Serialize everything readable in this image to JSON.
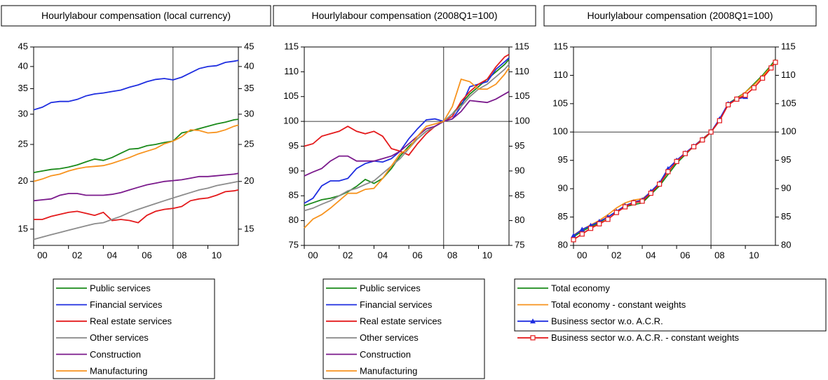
{
  "chart_data": [
    {
      "type": "line",
      "title": "Hourlylabour compensation (local currency)",
      "x": [
        2000,
        2000.5,
        2001,
        2001.5,
        2002,
        2002.5,
        2003,
        2003.5,
        2004,
        2004.5,
        2005,
        2005.5,
        2006,
        2006.5,
        2007,
        2007.5,
        2008,
        2008.5,
        2009,
        2009.5,
        2010,
        2010.5,
        2011,
        2011.5,
        2011.75
      ],
      "xlim": [
        2000,
        2011.75
      ],
      "xticks": [
        {
          "value": 2000,
          "label": "00"
        },
        {
          "value": 2002,
          "label": "02"
        },
        {
          "value": 2004,
          "label": "04"
        },
        {
          "value": 2006,
          "label": "06"
        },
        {
          "value": 2008,
          "label": "08"
        },
        {
          "value": 2010,
          "label": "10"
        }
      ],
      "ylim": [
        13.6,
        45
      ],
      "yticks": [
        15,
        20,
        25,
        30,
        35,
        40,
        45
      ],
      "log_scale": true,
      "vline": 2008,
      "series": [
        {
          "name": "Public services",
          "color": "#1a8a1a",
          "values": [
            21.1,
            21.3,
            21.5,
            21.6,
            21.8,
            22.1,
            22.5,
            22.9,
            22.7,
            23.1,
            23.7,
            24.3,
            24.4,
            24.8,
            25.0,
            25.3,
            25.5,
            26.8,
            27.1,
            27.5,
            27.9,
            28.3,
            28.6,
            29.0,
            29.1
          ]
        },
        {
          "name": "Financial services",
          "color": "#1f2ee0",
          "values": [
            30.8,
            31.3,
            32.2,
            32.4,
            32.4,
            32.8,
            33.5,
            33.9,
            34.1,
            34.4,
            34.7,
            35.3,
            35.8,
            36.5,
            37.0,
            37.2,
            36.9,
            37.5,
            38.5,
            39.5,
            40.0,
            40.2,
            41.0,
            41.3,
            41.5
          ]
        },
        {
          "name": "Real estate services",
          "color": "#e41a1c",
          "values": [
            15.9,
            15.9,
            16.2,
            16.4,
            16.6,
            16.7,
            16.5,
            16.3,
            16.6,
            15.8,
            15.9,
            15.8,
            15.6,
            16.3,
            16.7,
            16.9,
            17.0,
            17.2,
            17.8,
            18.0,
            18.1,
            18.4,
            18.8,
            18.9,
            19.0
          ]
        },
        {
          "name": "Other services",
          "color": "#8c8c8c",
          "values": [
            14.1,
            14.3,
            14.5,
            14.7,
            14.9,
            15.1,
            15.3,
            15.5,
            15.6,
            15.9,
            16.2,
            16.6,
            16.9,
            17.2,
            17.5,
            17.8,
            18.1,
            18.4,
            18.7,
            19.0,
            19.2,
            19.5,
            19.7,
            19.9,
            20.0
          ]
        },
        {
          "name": "Construction",
          "color": "#7b1a8c",
          "values": [
            17.8,
            17.9,
            18.0,
            18.4,
            18.6,
            18.6,
            18.4,
            18.4,
            18.4,
            18.5,
            18.7,
            19.0,
            19.3,
            19.6,
            19.8,
            20.0,
            20.1,
            20.2,
            20.4,
            20.6,
            20.6,
            20.7,
            20.8,
            20.9,
            21.0
          ]
        },
        {
          "name": "Manufacturing",
          "color": "#f7931e",
          "values": [
            20.0,
            20.3,
            20.7,
            20.9,
            21.3,
            21.6,
            21.8,
            21.9,
            22.0,
            22.3,
            22.7,
            23.1,
            23.6,
            24.0,
            24.4,
            25.1,
            25.5,
            26.2,
            27.3,
            27.2,
            26.8,
            26.9,
            27.3,
            27.9,
            28.1
          ]
        }
      ]
    },
    {
      "type": "line",
      "title": "Hourlylabour compensation (2008Q1=100)",
      "x": [
        2000,
        2000.5,
        2001,
        2001.5,
        2002,
        2002.5,
        2003,
        2003.5,
        2004,
        2004.5,
        2005,
        2005.5,
        2006,
        2006.5,
        2007,
        2007.5,
        2008,
        2008.5,
        2009,
        2009.5,
        2010,
        2010.5,
        2011,
        2011.5,
        2011.75
      ],
      "xlim": [
        2000,
        2011.75
      ],
      "xticks": [
        {
          "value": 2000,
          "label": "00"
        },
        {
          "value": 2002,
          "label": "02"
        },
        {
          "value": 2004,
          "label": "04"
        },
        {
          "value": 2006,
          "label": "06"
        },
        {
          "value": 2008,
          "label": "08"
        },
        {
          "value": 2010,
          "label": "10"
        }
      ],
      "ylim": [
        75,
        115
      ],
      "yticks": [
        75,
        80,
        85,
        90,
        95,
        100,
        105,
        110,
        115
      ],
      "log_scale": false,
      "vline": 2008,
      "hline": 100,
      "series": [
        {
          "name": "Public services",
          "color": "#1a8a1a",
          "values": [
            83,
            83.6,
            84.2,
            84.5,
            85,
            85.8,
            86.9,
            88.3,
            87.5,
            88.5,
            90.5,
            93,
            95,
            96.5,
            98,
            99,
            100,
            101.5,
            103.5,
            105.5,
            107,
            108.5,
            110,
            111.5,
            112.5
          ]
        },
        {
          "name": "Financial services",
          "color": "#1f2ee0",
          "values": [
            83.5,
            84.5,
            87,
            88,
            88,
            88.5,
            90.5,
            91.5,
            92,
            91.8,
            92.5,
            94,
            96.5,
            98.5,
            100.3,
            100.5,
            100,
            100.5,
            103,
            107,
            107.5,
            108,
            110.5,
            112,
            112.8
          ]
        },
        {
          "name": "Real estate services",
          "color": "#e41a1c",
          "values": [
            95,
            95.5,
            97,
            97.5,
            98,
            99,
            98,
            97.5,
            98,
            97,
            94.5,
            94,
            93.2,
            95.5,
            97.5,
            99,
            100,
            101,
            104,
            106,
            107.5,
            108.5,
            111,
            113,
            113.5
          ]
        },
        {
          "name": "Other services",
          "color": "#8c8c8c",
          "values": [
            82,
            82.5,
            83.3,
            84,
            85,
            86,
            86.5,
            87.3,
            88,
            89.5,
            91,
            92.5,
            94.5,
            96.5,
            98,
            99,
            100,
            101.5,
            103,
            105,
            106.5,
            107.5,
            109,
            110.5,
            111.5
          ]
        },
        {
          "name": "Construction",
          "color": "#7b1a8c",
          "values": [
            89,
            89.8,
            90.5,
            92,
            93,
            93,
            92,
            92,
            92,
            92.5,
            93,
            94,
            95.5,
            97,
            98.5,
            99,
            100,
            100.5,
            102,
            104.2,
            104,
            103.8,
            104.5,
            105.5,
            106
          ]
        },
        {
          "name": "Manufacturing",
          "color": "#f7931e",
          "values": [
            78.5,
            80.3,
            81.2,
            82.5,
            84,
            85.5,
            85.5,
            86.3,
            86.5,
            88.5,
            91,
            93.5,
            94.5,
            97,
            99,
            99.5,
            100,
            103,
            108.5,
            108,
            106.5,
            106.5,
            107.5,
            109.5,
            110.8
          ]
        }
      ]
    },
    {
      "type": "line",
      "title": "Hourlylabour compensation (2008Q1=100)",
      "x": [
        2000,
        2000.5,
        2001,
        2001.5,
        2002,
        2002.5,
        2003,
        2003.5,
        2004,
        2004.5,
        2005,
        2005.5,
        2006,
        2006.5,
        2007,
        2007.5,
        2008,
        2008.5,
        2009,
        2009.5,
        2010,
        2010.5,
        2011,
        2011.5,
        2011.75
      ],
      "xlim": [
        2000,
        2011.75
      ],
      "xticks": [
        {
          "value": 2000,
          "label": "00"
        },
        {
          "value": 2002,
          "label": "02"
        },
        {
          "value": 2004,
          "label": "04"
        },
        {
          "value": 2006,
          "label": "06"
        },
        {
          "value": 2008,
          "label": "08"
        },
        {
          "value": 2010,
          "label": "10"
        }
      ],
      "ylim": [
        80,
        115
      ],
      "yticks": [
        80,
        85,
        90,
        95,
        100,
        105,
        110,
        115
      ],
      "log_scale": false,
      "vline": 2008,
      "hline": 100,
      "series": [
        {
          "name": "Total economy",
          "color": "#1a8a1a",
          "values": [
            81.5,
            82.5,
            83.3,
            84,
            85,
            86,
            86.8,
            87.2,
            87.5,
            89,
            90.5,
            92.5,
            94.5,
            96,
            97.5,
            98.5,
            100,
            102,
            105,
            106,
            107,
            108.5,
            110,
            111.8,
            112.8
          ]
        },
        {
          "name": "Total economy - constant weights",
          "color": "#f7931e",
          "values": [
            81.8,
            82.8,
            83.6,
            84.4,
            85.4,
            86.6,
            87.5,
            88,
            88.2,
            89.4,
            91,
            93,
            94.8,
            96.2,
            97.5,
            98.8,
            100,
            102.2,
            104.8,
            105.8,
            107,
            108.3,
            109.8,
            111.5,
            112.5
          ]
        },
        {
          "name": "Business sector w.o. A.C.R.",
          "color": "#1f2ee0",
          "marker": "triangle",
          "values": [
            81.7,
            82.8,
            83.5,
            84.2,
            85,
            86,
            87,
            87.6,
            88,
            89.5,
            91,
            93.5,
            95,
            96.3,
            97.5,
            98.7,
            100,
            102.3,
            105,
            105.8,
            106.2,
            null,
            null,
            null,
            null
          ]
        },
        {
          "name": "Business sector w.o. A.C.R. - constant weights",
          "color": "#e41a1c",
          "marker": "square",
          "values": [
            81,
            82,
            83,
            83.8,
            84.6,
            85.8,
            86.8,
            87.5,
            87.8,
            89.2,
            90.8,
            93,
            94.8,
            96.2,
            97.4,
            98.6,
            100,
            102,
            104.8,
            105.8,
            106.5,
            107.8,
            109.5,
            111.3,
            112.3
          ]
        }
      ]
    }
  ]
}
